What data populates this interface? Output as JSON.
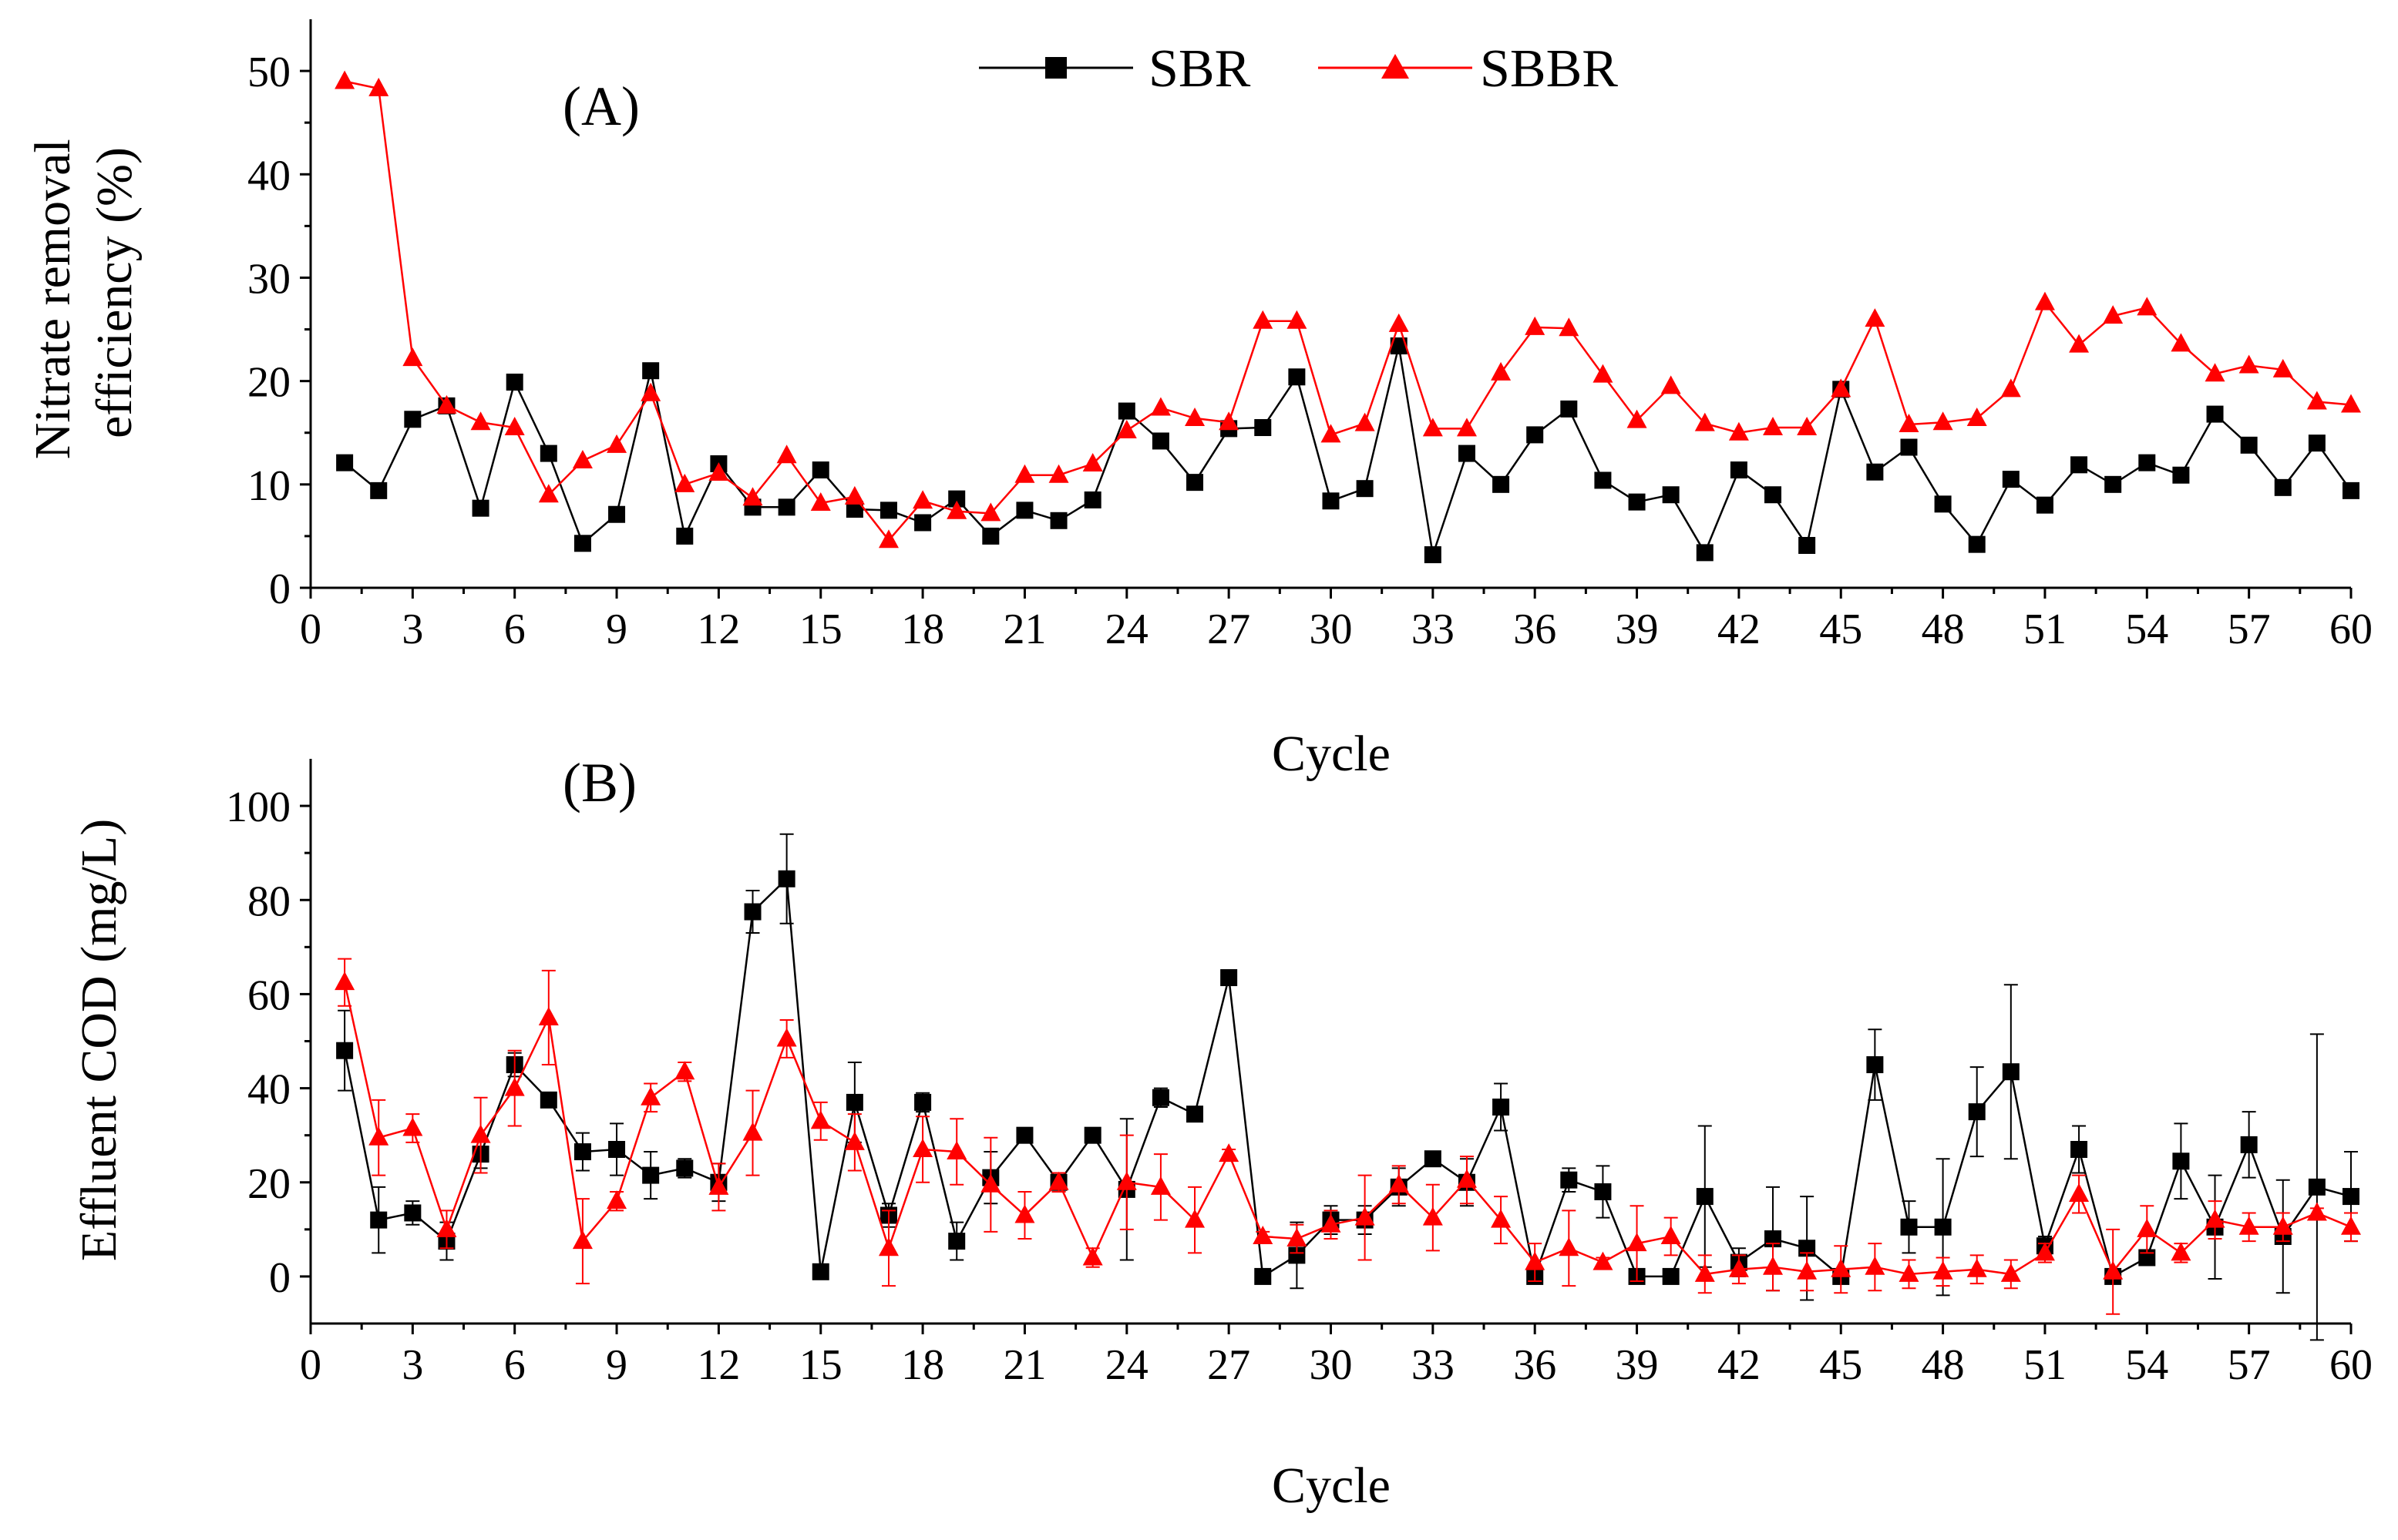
{
  "figure": {
    "legend": {
      "entries": [
        {
          "label": "SBR",
          "color": "#000000",
          "marker": "square"
        },
        {
          "label": "SBBR",
          "color": "#ff0000",
          "marker": "triangle"
        }
      ]
    }
  },
  "chart_data": [
    {
      "type": "line",
      "panel_label": "(A)",
      "title": "",
      "xlabel": "Cycle",
      "ylabel_lines": [
        "Nitrate removal",
        "efficiency (%)"
      ],
      "xlim": [
        0,
        60
      ],
      "ylim": [
        0,
        55
      ],
      "xticks": [
        0,
        3,
        6,
        9,
        12,
        15,
        18,
        21,
        24,
        27,
        30,
        33,
        36,
        39,
        42,
        45,
        48,
        51,
        54,
        57,
        60
      ],
      "yticks": [
        0,
        10,
        20,
        30,
        40,
        50
      ],
      "grid": false,
      "legend_position": "top-center",
      "x": [
        1,
        2,
        3,
        4,
        5,
        6,
        7,
        8,
        9,
        10,
        11,
        12,
        13,
        14,
        15,
        16,
        17,
        18,
        19,
        20,
        21,
        22,
        23,
        24,
        25,
        26,
        27,
        28,
        29,
        30,
        31,
        32,
        33,
        34,
        35,
        36,
        37,
        38,
        39,
        40,
        41,
        42,
        43,
        44,
        45,
        46,
        47,
        48,
        49,
        50,
        51,
        52,
        53,
        54,
        55,
        56,
        57,
        58,
        59,
        60
      ],
      "series": [
        {
          "name": "SBR",
          "color": "#000000",
          "marker": "square",
          "values": [
            12.1,
            9.4,
            16.3,
            17.6,
            7.7,
            19.9,
            13,
            4.3,
            7.1,
            21,
            5,
            12,
            7.8,
            7.8,
            11.4,
            7.6,
            7.5,
            6.3,
            8.6,
            5,
            7.5,
            6.5,
            8.5,
            17.1,
            14.2,
            10.2,
            15.4,
            15.5,
            20.4,
            8.4,
            9.6,
            23.4,
            3.2,
            13,
            10,
            14.8,
            17.3,
            10.4,
            8.3,
            9,
            3.4,
            11.4,
            9,
            4.1,
            19.2,
            11.2,
            13.6,
            8.1,
            4.2,
            10.5,
            8,
            11.9,
            10,
            12.1,
            10.9,
            16.8,
            13.8,
            9.7,
            14,
            9.4
          ]
        },
        {
          "name": "SBBR",
          "color": "#ff0000",
          "marker": "triangle",
          "values": [
            49,
            48.3,
            22.2,
            17.6,
            16,
            15.5,
            9,
            12.3,
            13.8,
            18.8,
            10,
            11.1,
            8.7,
            12.8,
            8.2,
            8.8,
            4.6,
            8.4,
            7.4,
            7.2,
            10.9,
            10.9,
            12,
            15.2,
            17.4,
            16.4,
            16,
            25.8,
            25.8,
            14.8,
            15.9,
            25.5,
            15.4,
            15.4,
            20.8,
            25.2,
            25.1,
            20.6,
            16.2,
            19.5,
            15.9,
            15,
            15.5,
            15.5,
            19.2,
            26,
            15.8,
            16,
            16.4,
            19.2,
            27.6,
            23.5,
            26.3,
            27.1,
            23.6,
            20.7,
            21.5,
            21.1,
            18,
            17.7
          ]
        }
      ]
    },
    {
      "type": "line",
      "panel_label": "(B)",
      "title": "",
      "xlabel": "Cycle",
      "ylabel": "Effluent COD (mg/L)",
      "xlim": [
        0,
        60
      ],
      "ylim": [
        -10,
        110
      ],
      "xticks": [
        0,
        3,
        6,
        9,
        12,
        15,
        18,
        21,
        24,
        27,
        30,
        33,
        36,
        39,
        42,
        45,
        48,
        51,
        54,
        57,
        60
      ],
      "yticks": [
        0,
        20,
        40,
        60,
        80,
        100
      ],
      "grid": false,
      "error_bars": true,
      "x": [
        1,
        2,
        3,
        4,
        5,
        6,
        7,
        8,
        9,
        10,
        11,
        12,
        13,
        14,
        15,
        16,
        17,
        18,
        19,
        20,
        21,
        22,
        23,
        24,
        25,
        26,
        27,
        28,
        29,
        30,
        31,
        32,
        33,
        34,
        35,
        36,
        37,
        38,
        39,
        40,
        41,
        42,
        43,
        44,
        45,
        46,
        47,
        48,
        49,
        50,
        51,
        52,
        53,
        54,
        55,
        56,
        57,
        58,
        59,
        60
      ],
      "series": [
        {
          "name": "SBR",
          "color": "#000000",
          "marker": "square",
          "values": [
            48,
            12,
            13.5,
            7.5,
            26,
            45,
            37.5,
            26.5,
            27,
            21.5,
            23,
            20,
            77.5,
            84.5,
            1,
            37,
            13,
            37,
            7.5,
            21,
            30,
            20,
            30,
            18.5,
            38,
            34.5,
            63.5,
            0,
            4.5,
            12,
            12,
            19,
            25,
            20,
            36,
            0,
            20.5,
            18,
            0,
            0,
            17,
            3,
            8,
            6,
            0,
            45,
            10.5,
            10.5,
            35,
            43.5,
            6.5,
            27,
            0,
            4,
            24.5,
            10.5,
            28,
            8.5,
            19,
            17
          ],
          "errors": [
            8.5,
            7,
            2.5,
            4,
            3,
            2.5,
            1.5,
            4,
            5.5,
            5,
            2,
            4,
            4.5,
            9.5,
            1.5,
            8.5,
            2.5,
            2,
            4,
            5.5,
            1.5,
            2,
            1,
            15,
            2,
            1.5,
            1,
            1,
            7,
            3,
            3,
            4,
            1.5,
            5,
            5,
            1,
            2.5,
            5.5,
            1,
            1,
            15,
            3,
            11,
            11,
            1.5,
            7.5,
            5.5,
            14.5,
            9.5,
            18.5,
            2,
            5,
            1.5,
            1.5,
            8,
            11,
            7,
            12,
            32.5,
            9.5
          ]
        },
        {
          "name": "SBBR",
          "color": "#ff0000",
          "marker": "triangle",
          "values": [
            62.5,
            29.5,
            31.5,
            10,
            30,
            40,
            55,
            7.5,
            16,
            38,
            43.5,
            19,
            30.5,
            50.5,
            33,
            28.5,
            6,
            27,
            26.5,
            19.5,
            13,
            20,
            4,
            20,
            19,
            12,
            26,
            8.5,
            8,
            11,
            12.5,
            19.5,
            12.5,
            20.5,
            12,
            3,
            6,
            3,
            7,
            8.5,
            0.5,
            1.5,
            2,
            1,
            1.5,
            2,
            0.5,
            1,
            1.5,
            0.5,
            5,
            17.5,
            1,
            10,
            5,
            12,
            10.5,
            10.5,
            13.5,
            10.5
          ],
          "errors": [
            5,
            8,
            3,
            4,
            8,
            8,
            10,
            9,
            2,
            3,
            2,
            5,
            9,
            4,
            4,
            6,
            8,
            7,
            7,
            10,
            5,
            2,
            2,
            10,
            7,
            7,
            1,
            1,
            3,
            3,
            9,
            4,
            7,
            5,
            5,
            4,
            8,
            1,
            8,
            4,
            4,
            3,
            5,
            4,
            5,
            5,
            3,
            3,
            3,
            3,
            2,
            4,
            9,
            5,
            2,
            4,
            3,
            3,
            1,
            3
          ]
        }
      ]
    }
  ]
}
